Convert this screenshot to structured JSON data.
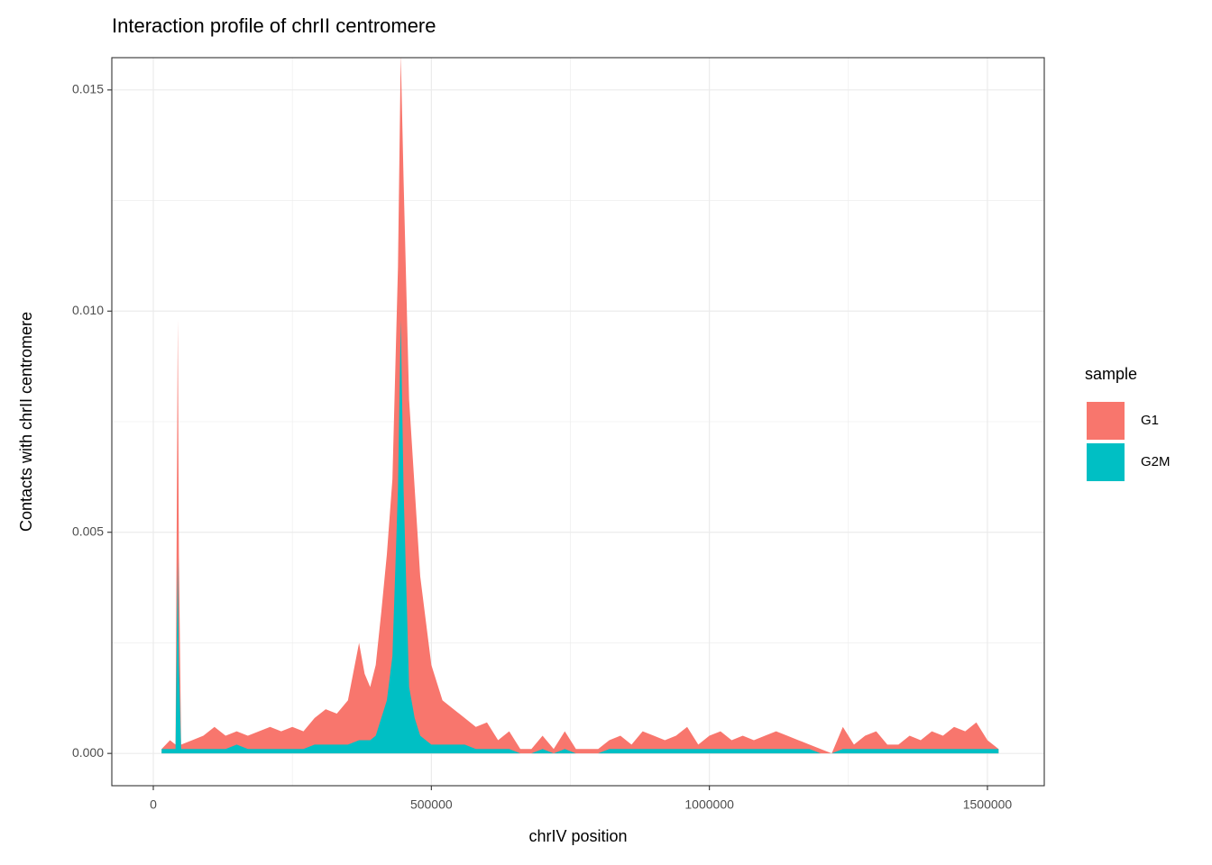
{
  "chart_data": {
    "type": "area",
    "title": "Interaction profile of chrII centromere",
    "xlabel": "chrIV position",
    "ylabel": "Contacts with chrII centromere",
    "legend_title": "sample",
    "legend": "right",
    "grid": true,
    "xlim": [
      -74600,
      1602200
    ],
    "ylim": [
      -0.00073,
      0.01573
    ],
    "xticks": [
      0,
      500000,
      1000000,
      1500000
    ],
    "yticks": [
      {
        "value": 0,
        "label": "0.000"
      },
      {
        "value": 0.005,
        "label": "0.005"
      },
      {
        "value": 0.01,
        "label": "0.010"
      },
      {
        "value": 0.015,
        "label": "0.015"
      }
    ],
    "xminor": [
      250000,
      750000,
      1250000
    ],
    "yminor": [
      0.0025,
      0.0075,
      0.0125
    ],
    "x": [
      15000,
      30000,
      40000,
      44000,
      46000,
      50000,
      70000,
      90000,
      110000,
      130000,
      150000,
      170000,
      190000,
      210000,
      230000,
      250000,
      270000,
      290000,
      310000,
      330000,
      350000,
      370000,
      380000,
      390000,
      400000,
      410000,
      420000,
      430000,
      440000,
      445000,
      450000,
      460000,
      470000,
      480000,
      490000,
      500000,
      520000,
      540000,
      560000,
      580000,
      600000,
      620000,
      640000,
      660000,
      680000,
      700000,
      720000,
      740000,
      760000,
      780000,
      800000,
      820000,
      840000,
      860000,
      880000,
      900000,
      920000,
      940000,
      960000,
      980000,
      1000000,
      1020000,
      1040000,
      1060000,
      1080000,
      1100000,
      1120000,
      1140000,
      1160000,
      1180000,
      1200000,
      1220000,
      1240000,
      1260000,
      1280000,
      1300000,
      1320000,
      1340000,
      1360000,
      1380000,
      1400000,
      1420000,
      1440000,
      1460000,
      1480000,
      1500000,
      1520000
    ],
    "series": [
      {
        "name": "G1",
        "color": "#F8766D",
        "values": [
          0.0001,
          0.0003,
          0.0002,
          0.0098,
          0.0045,
          0.0002,
          0.0003,
          0.0004,
          0.0006,
          0.0004,
          0.0005,
          0.0004,
          0.0005,
          0.0006,
          0.0005,
          0.0006,
          0.0005,
          0.0008,
          0.001,
          0.0009,
          0.0012,
          0.0025,
          0.0018,
          0.0015,
          0.002,
          0.0032,
          0.0045,
          0.0062,
          0.011,
          0.0158,
          0.013,
          0.008,
          0.006,
          0.004,
          0.003,
          0.002,
          0.0012,
          0.001,
          0.0008,
          0.0006,
          0.0007,
          0.0003,
          0.0005,
          0.0001,
          0.0001,
          0.0004,
          0.0001,
          0.0005,
          0.0001,
          0.0001,
          0.0001,
          0.0003,
          0.0004,
          0.0002,
          0.0005,
          0.0004,
          0.0003,
          0.0004,
          0.0006,
          0.0002,
          0.0004,
          0.0005,
          0.0003,
          0.0004,
          0.0003,
          0.0004,
          0.0005,
          0.0004,
          0.0003,
          0.0002,
          0.0001,
          0,
          0.0006,
          0.0002,
          0.0004,
          0.0005,
          0.0002,
          0.0002,
          0.0004,
          0.0003,
          0.0005,
          0.0004,
          0.0006,
          0.0005,
          0.0007,
          0.0003,
          0.0001
        ]
      },
      {
        "name": "G2M",
        "color": "#00BFC4",
        "values": [
          0.0001,
          0.0001,
          0.0001,
          0.0044,
          0.002,
          0.0001,
          0.0001,
          0.0001,
          0.0001,
          0.0001,
          0.0002,
          0.0001,
          0.0001,
          0.0001,
          0.0001,
          0.0001,
          0.0001,
          0.0002,
          0.0002,
          0.0002,
          0.0002,
          0.0003,
          0.0003,
          0.0003,
          0.0004,
          0.0008,
          0.0012,
          0.0022,
          0.006,
          0.0098,
          0.006,
          0.0015,
          0.0008,
          0.0004,
          0.0003,
          0.0002,
          0.0002,
          0.0002,
          0.0002,
          0.0001,
          0.0001,
          0.0001,
          0.0001,
          0,
          0,
          0.0001,
          0,
          0.0001,
          0,
          0,
          0,
          0.0001,
          0.0001,
          0.0001,
          0.0001,
          0.0001,
          0.0001,
          0.0001,
          0.0001,
          0.0001,
          0.0001,
          0.0001,
          0.0001,
          0.0001,
          0.0001,
          0.0001,
          0.0001,
          0.0001,
          0.0001,
          0.0001,
          0,
          0,
          0.0001,
          0.0001,
          0.0001,
          0.0001,
          0.0001,
          0.0001,
          0.0001,
          0.0001,
          0.0001,
          0.0001,
          0.0001,
          0.0001,
          0.0001,
          0.0001,
          0.0001
        ]
      }
    ]
  }
}
